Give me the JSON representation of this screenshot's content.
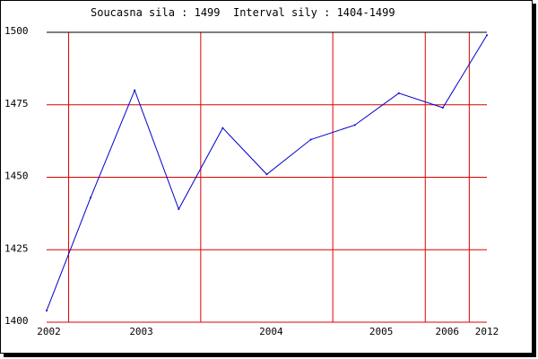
{
  "header": {
    "current_label": "Soucasna sila :",
    "current_value": "1499",
    "interval_label": "Interval sily :",
    "interval_value": "1404-1499"
  },
  "colors": {
    "grid": "#dd0000",
    "line": "#0000cc",
    "frame": "#000000",
    "text": "#000000"
  },
  "chart_data": {
    "type": "line",
    "title": "",
    "xlabel": "",
    "ylabel": "",
    "ylim": [
      1400,
      1500
    ],
    "yticks": [
      1400,
      1425,
      1450,
      1475,
      1500
    ],
    "x_tick_labels": [
      {
        "label": "2002",
        "at": 0.05
      },
      {
        "label": "2003",
        "at": 2.15
      },
      {
        "label": "2004",
        "at": 5.1
      },
      {
        "label": "2005",
        "at": 7.6
      },
      {
        "label": "2006",
        "at": 9.1
      },
      {
        "label": "2012",
        "at": 10.0
      }
    ],
    "vertical_gridlines": [
      0.5,
      3.5,
      6.5,
      8.6,
      9.6
    ],
    "grid": true,
    "series": [
      {
        "values": [
          1404,
          1443,
          1480,
          1439,
          1467,
          1451,
          1463,
          1468,
          1479,
          1474,
          1499
        ]
      }
    ]
  }
}
